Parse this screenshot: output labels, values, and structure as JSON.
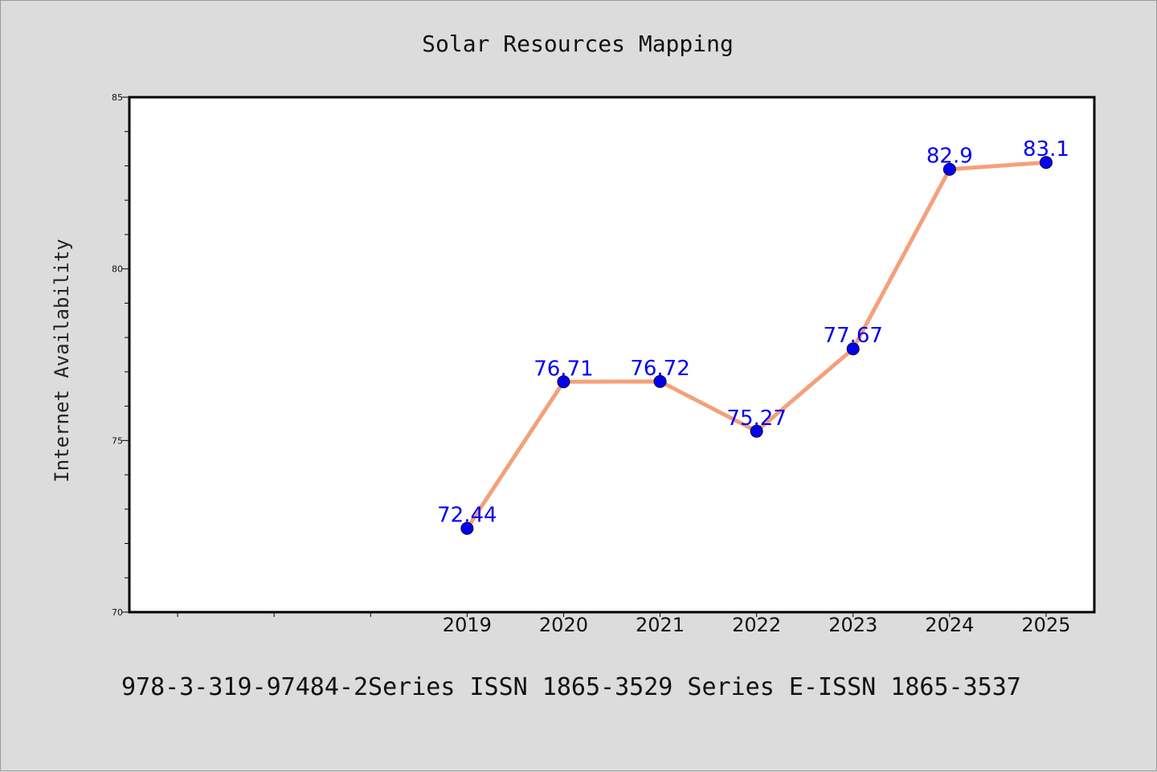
{
  "chart_data": {
    "type": "line",
    "title": "Solar Resources Mapping",
    "xlabel": "",
    "ylabel": "Internet Availability",
    "categories": [
      "2019",
      "2020",
      "2021",
      "2022",
      "2023",
      "2024",
      "2025"
    ],
    "x_axis_range": [
      2015.5,
      2025.5
    ],
    "ylim": [
      70,
      85
    ],
    "y_ticks": [
      70,
      75,
      80,
      85
    ],
    "y_minor_step": 1,
    "series": [
      {
        "name": "",
        "values": [
          72.44,
          76.71,
          76.72,
          75.27,
          77.67,
          82.9,
          83.1
        ],
        "labels": [
          "72.44",
          "76.71",
          "76.72",
          "75.27",
          "77.67",
          "82.9",
          "83.1"
        ]
      }
    ],
    "line_color": "#f4a07c",
    "marker_color": "#0000ee",
    "label_color": "#0000ee",
    "grid": false,
    "legend": "none"
  },
  "footer": "978-3-319-97484-2Series ISSN 1865-3529 Series E-ISSN 1865-3537"
}
